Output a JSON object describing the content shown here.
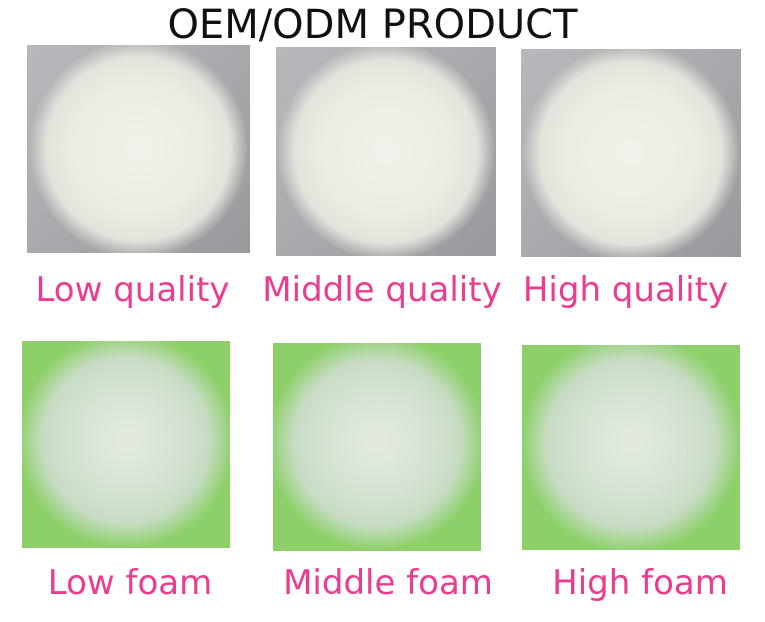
{
  "title": "OEM/ODM PRODUCT",
  "quality_row": [
    {
      "label": "Low quality",
      "image": "low-quality-powder-photo"
    },
    {
      "label": "Middle quality",
      "image": "middle-quality-powder-photo"
    },
    {
      "label": "High quality",
      "image": "high-quality-powder-photo"
    }
  ],
  "foam_row": [
    {
      "label": "Low foam",
      "image": "low-foam-photo"
    },
    {
      "label": "Middle foam",
      "image": "middle-foam-photo"
    },
    {
      "label": "High foam",
      "image": "high-foam-photo"
    }
  ],
  "colors": {
    "label": "#ea3d8f",
    "title": "#111111"
  }
}
